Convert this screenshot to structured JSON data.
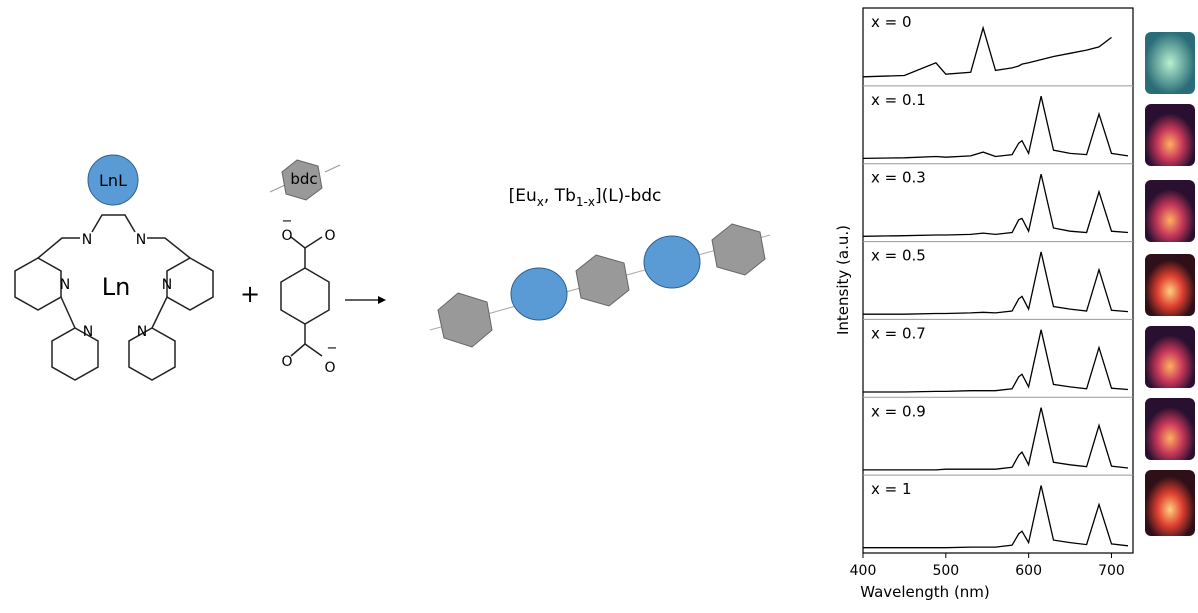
{
  "diagram": {
    "lnl_label": "LnL",
    "bdc_label": "bdc",
    "metal_label": "Ln",
    "n_labels": [
      "N",
      "N",
      "N",
      "N",
      "N",
      "N"
    ],
    "o_labels": [
      "O",
      "O",
      "O",
      "O"
    ],
    "charges": [
      "−",
      "−"
    ],
    "plus": "+",
    "formula": {
      "part1": "[Eu",
      "sub1": "x",
      "part2": ", Tb",
      "sub2": "1-x",
      "part3": "](L)-bdc"
    }
  },
  "chart_data": {
    "type": "line",
    "xlabel": "Wavelength (nm)",
    "ylabel": "Intensity (a.u.)",
    "xlim": [
      400,
      726
    ],
    "xticks": [
      400,
      500,
      600,
      700
    ],
    "ylim": [
      0,
      1.1
    ],
    "x": [
      400,
      450,
      488,
      500,
      530,
      545,
      560,
      580,
      588,
      592,
      600,
      615,
      630,
      650,
      670,
      685,
      700,
      720
    ],
    "series": [
      {
        "name": "x = 0",
        "color": "#000000",
        "values": [
          0.08,
          0.1,
          0.3,
          0.12,
          0.15,
          0.85,
          0.18,
          0.22,
          0.25,
          0.28,
          0.3,
          0.35,
          0.4,
          0.45,
          0.5,
          0.55,
          0.7,
          null
        ]
      },
      {
        "name": "x = 0.1",
        "color": "#000000",
        "values": [
          0.02,
          0.03,
          0.05,
          0.04,
          0.06,
          0.12,
          0.05,
          0.08,
          0.26,
          0.3,
          0.1,
          1.0,
          0.15,
          0.1,
          0.08,
          0.72,
          0.1,
          0.06
        ]
      },
      {
        "name": "x = 0.3",
        "color": "#000000",
        "values": [
          0.02,
          0.03,
          0.04,
          0.04,
          0.05,
          0.07,
          0.05,
          0.08,
          0.28,
          0.3,
          0.1,
          1.0,
          0.15,
          0.1,
          0.08,
          0.72,
          0.1,
          0.08
        ]
      },
      {
        "name": "x = 0.5",
        "color": "#000000",
        "values": [
          0.02,
          0.02,
          0.03,
          0.03,
          0.04,
          0.05,
          0.04,
          0.07,
          0.26,
          0.3,
          0.1,
          1.0,
          0.14,
          0.1,
          0.07,
          0.72,
          0.08,
          0.06
        ]
      },
      {
        "name": "x = 0.7",
        "color": "#000000",
        "values": [
          0.02,
          0.02,
          0.03,
          0.03,
          0.04,
          0.04,
          0.04,
          0.07,
          0.26,
          0.3,
          0.1,
          1.0,
          0.14,
          0.1,
          0.07,
          0.72,
          0.08,
          0.06
        ]
      },
      {
        "name": "x = 0.9",
        "color": "#000000",
        "values": [
          0.02,
          0.02,
          0.02,
          0.03,
          0.03,
          0.03,
          0.03,
          0.06,
          0.25,
          0.3,
          0.1,
          1.0,
          0.14,
          0.1,
          0.07,
          0.72,
          0.08,
          0.05
        ]
      },
      {
        "name": "x = 1",
        "color": "#000000",
        "values": [
          0.02,
          0.02,
          0.02,
          0.02,
          0.03,
          0.03,
          0.03,
          0.06,
          0.24,
          0.28,
          0.1,
          1.0,
          0.14,
          0.1,
          0.07,
          0.7,
          0.08,
          0.05
        ]
      }
    ]
  }
}
